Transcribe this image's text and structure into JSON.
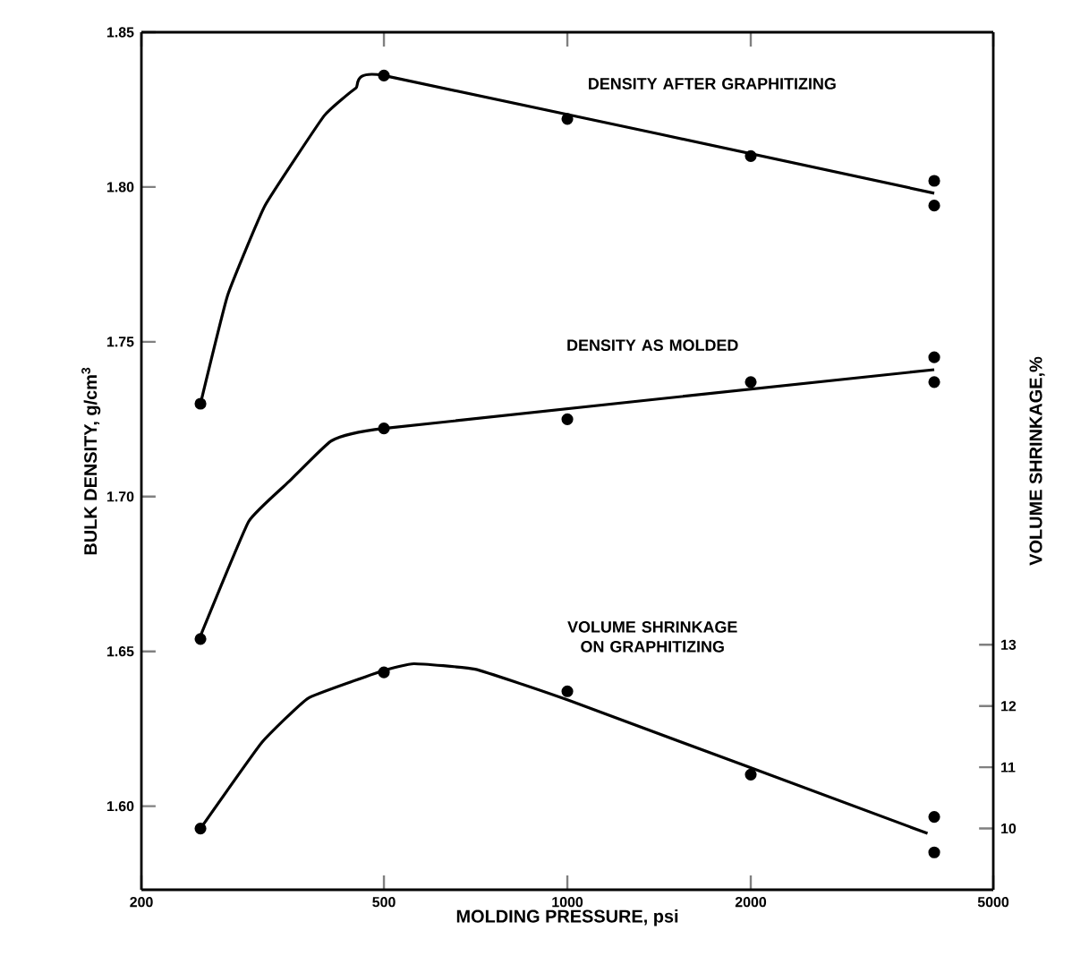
{
  "chart_data": {
    "type": "line",
    "xlabel": "MOLDING PRESSURE, psi",
    "ylabel": "BULK DENSITY, g/cm$^{3}$",
    "y2label": "VOLUME SHRINKAGE,%",
    "log": "x",
    "xlim": [
      200,
      5000
    ],
    "xticks": [
      200,
      500,
      1000,
      2000,
      5000
    ],
    "ylim": [
      1.573,
      1.85
    ],
    "yticks": [
      {
        "value": 1.6,
        "label": "1.60"
      },
      {
        "value": 1.65,
        "label": "1.65"
      },
      {
        "value": 1.7,
        "label": "1.70"
      },
      {
        "value": 1.75,
        "label": "1.75"
      },
      {
        "value": 1.8,
        "label": "1.80"
      },
      {
        "value": 1.85,
        "label": "1.85"
      }
    ],
    "y2lim": [
      9,
      23
    ],
    "y2ticks": [
      10,
      11,
      12,
      13
    ],
    "grid": false,
    "series": [
      {
        "color": "#000000",
        "marker": "none",
        "x": [
          250,
          277,
          319,
          399,
          450,
          500,
          4000
        ],
        "values": [
          1.73,
          1.765,
          1.794,
          1.823,
          1.832,
          1.836,
          1.798
        ]
      },
      {
        "type": "scatter",
        "color": "#000000",
        "marker": "circle",
        "x": [
          250,
          500,
          1000,
          2000,
          4000,
          4000
        ],
        "values": [
          1.73,
          1.836,
          1.822,
          1.81,
          1.802,
          1.794
        ]
      },
      {
        "color": "#000000",
        "marker": "none",
        "x": [
          250,
          300,
          350,
          410,
          500,
          4000
        ],
        "values": [
          1.655,
          1.692,
          1.705,
          1.718,
          1.722,
          1.741
        ]
      },
      {
        "type": "scatter",
        "color": "#000000",
        "marker": "circle",
        "x": [
          250,
          500,
          1000,
          2000,
          4000,
          4000
        ],
        "values": [
          1.654,
          1.722,
          1.725,
          1.737,
          1.745,
          1.737
        ]
      },
      {
        "axis": "y2",
        "color": "#000000",
        "marker": "none",
        "x": [
          250,
          315,
          376,
          500,
          560,
          706,
          1000,
          3900
        ],
        "values": [
          10.0,
          11.4,
          12.13,
          12.58,
          12.69,
          12.6,
          12.1,
          9.92
        ]
      },
      {
        "type": "scatter",
        "axis": "y2",
        "color": "#000000",
        "marker": "circle",
        "x": [
          250,
          500,
          1000,
          2000,
          4000,
          4000
        ],
        "values": [
          10.0,
          12.55,
          12.24,
          10.88,
          10.19,
          9.61
        ]
      }
    ],
    "annotations": [
      "DENSITY AFTER GRAPHITIZING",
      "DENSITY AS MOLDED",
      "VOLUME SHRINKAGE ON GRAPHITIZING"
    ]
  }
}
